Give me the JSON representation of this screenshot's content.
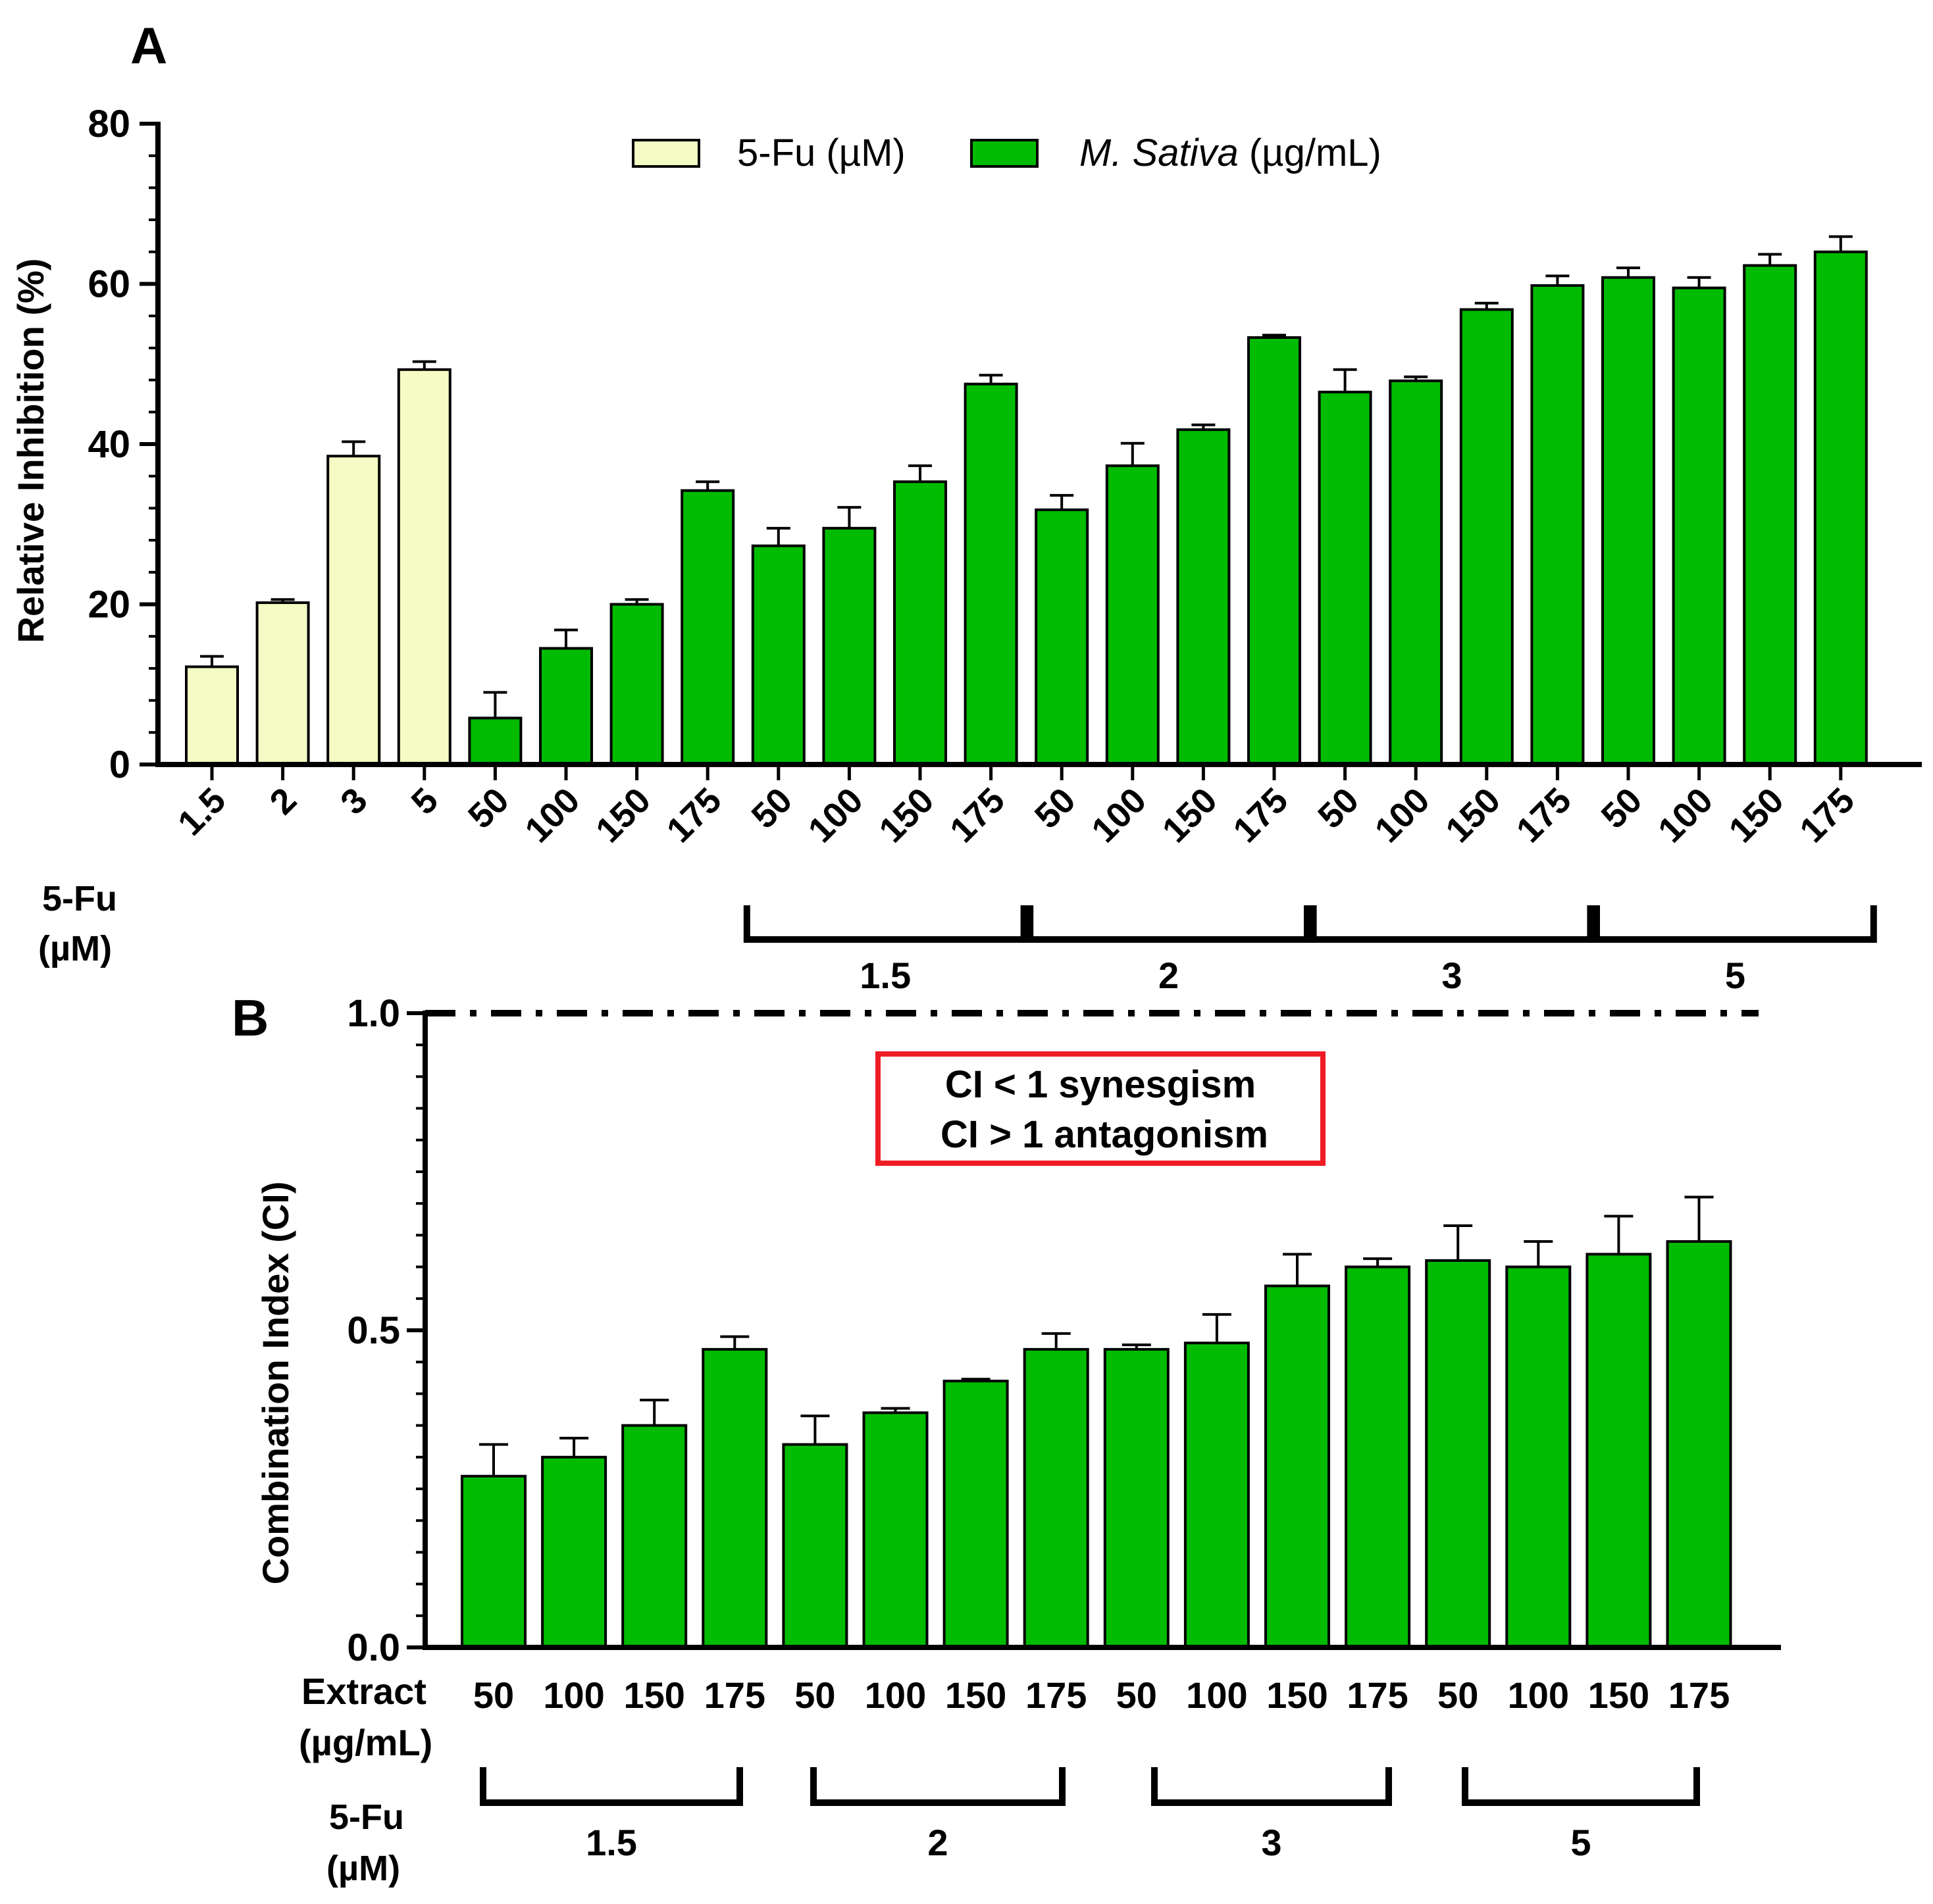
{
  "colors": {
    "fu": "#f5fbc4",
    "extract": "#00bb00",
    "axis": "#000000",
    "ci_box": "#ee1c25"
  },
  "chart_data": [
    {
      "panel": "A",
      "type": "bar",
      "ylabel": "Relative Inhibition (%)",
      "ylim": [
        0,
        80
      ],
      "yticks": [
        0,
        20,
        40,
        60,
        80
      ],
      "legend": [
        {
          "label": "5-Fu (µM)",
          "series": "5-Fu"
        },
        {
          "label_italic": "M. Sativa",
          "label_rest": " (µg/mL)",
          "series": "M. Sativa"
        }
      ],
      "legend_position": "top-center",
      "categories": [
        "1.5",
        "2",
        "3",
        "5",
        "50",
        "100",
        "150",
        "175",
        "50",
        "100",
        "150",
        "175",
        "50",
        "100",
        "150",
        "175",
        "50",
        "100",
        "150",
        "175",
        "50",
        "100",
        "150",
        "175"
      ],
      "series_of_bar": [
        "5-Fu",
        "5-Fu",
        "5-Fu",
        "5-Fu",
        "M. Sativa",
        "M. Sativa",
        "M. Sativa",
        "M. Sativa",
        "M. Sativa",
        "M. Sativa",
        "M. Sativa",
        "M. Sativa",
        "M. Sativa",
        "M. Sativa",
        "M. Sativa",
        "M. Sativa",
        "M. Sativa",
        "M. Sativa",
        "M. Sativa",
        "M. Sativa",
        "M. Sativa",
        "M. Sativa",
        "M. Sativa",
        "M. Sativa"
      ],
      "values": [
        12.2,
        20.2,
        38.5,
        49.3,
        5.8,
        14.5,
        20.0,
        34.2,
        27.3,
        29.5,
        35.3,
        47.5,
        31.8,
        37.3,
        41.8,
        53.3,
        46.5,
        47.9,
        56.8,
        59.8,
        60.8,
        59.5,
        62.3,
        64.0
      ],
      "errors": [
        1.3,
        0.4,
        1.8,
        1.0,
        3.2,
        2.3,
        0.6,
        1.1,
        2.2,
        2.6,
        2.0,
        1.1,
        1.8,
        2.8,
        0.6,
        0.3,
        2.8,
        0.5,
        0.8,
        1.2,
        1.2,
        1.3,
        1.4,
        1.9
      ],
      "group_axis_label": [
        "5-Fu",
        "(µM)"
      ],
      "groups": [
        {
          "label": "1.5",
          "from": 8,
          "to": 11
        },
        {
          "label": "2",
          "from": 12,
          "to": 15
        },
        {
          "label": "3",
          "from": 16,
          "to": 19
        },
        {
          "label": "5",
          "from": 20,
          "to": 23
        }
      ]
    },
    {
      "panel": "B",
      "type": "bar",
      "ylabel": "Combination Index (CI)",
      "ylim": [
        0,
        1.0
      ],
      "yticks": [
        0.0,
        0.5,
        1.0
      ],
      "ytick_labels": [
        "0.0",
        "0.5",
        "1.0"
      ],
      "reference_line": {
        "y": 1.0,
        "style": "dash-dot"
      },
      "annotation": [
        "CI < 1 synesgism",
        "CI > 1 antagonism"
      ],
      "xlabel": [
        "Extract",
        "(µg/mL)"
      ],
      "categories": [
        "50",
        "100",
        "150",
        "175",
        "50",
        "100",
        "150",
        "175",
        "50",
        "100",
        "150",
        "175",
        "50",
        "100",
        "150",
        "175"
      ],
      "values": [
        0.27,
        0.3,
        0.35,
        0.47,
        0.32,
        0.37,
        0.42,
        0.47,
        0.47,
        0.48,
        0.57,
        0.6,
        0.61,
        0.6,
        0.62,
        0.64
      ],
      "errors": [
        0.05,
        0.03,
        0.04,
        0.02,
        0.045,
        0.007,
        0.003,
        0.025,
        0.007,
        0.045,
        0.05,
        0.013,
        0.055,
        0.04,
        0.06,
        0.07
      ],
      "group_axis_label": [
        "5-Fu",
        "(µM)"
      ],
      "groups": [
        {
          "label": "1.5",
          "from": 0,
          "to": 3
        },
        {
          "label": "2",
          "from": 4,
          "to": 7
        },
        {
          "label": "3",
          "from": 8,
          "to": 11
        },
        {
          "label": "5",
          "from": 12,
          "to": 15
        }
      ]
    }
  ]
}
